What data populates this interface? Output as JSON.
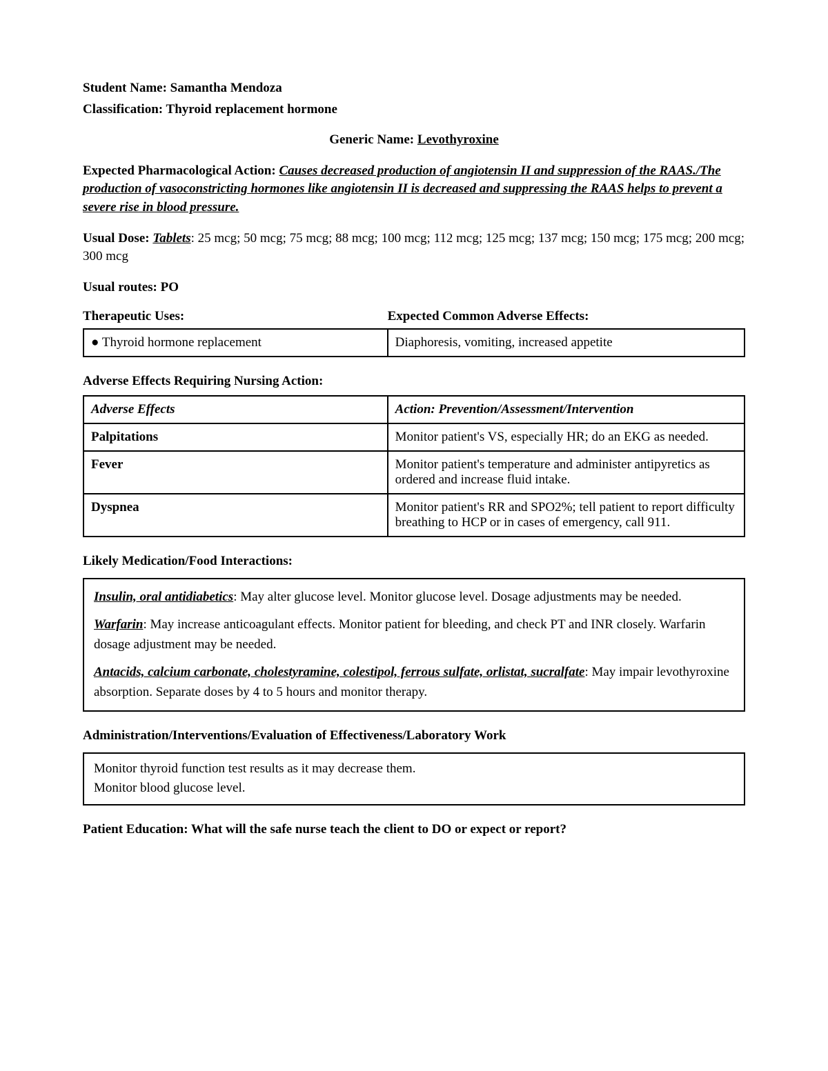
{
  "header": {
    "student_label": "Student Name:",
    "student_value": " Samantha Mendoza",
    "classification_label": "Classification:",
    "classification_value": " Thyroid replacement hormone",
    "generic_label": "Generic Name: ",
    "generic_value": "Levothyroxine"
  },
  "pharm_action": {
    "label": "Expected Pharmacological Action: ",
    "text": "Causes decreased production of angiotensin II and suppression of the RAAS./The production of vasoconstricting hormones like angiotensin II is decreased and suppressing the RAAS helps to prevent a severe rise in blood pressure."
  },
  "dose": {
    "label": "Usual Dose: ",
    "form": "Tablets",
    "text": ": 25 mcg; 50 mcg; 75 mcg; 88 mcg; 100 mcg; 112 mcg; 125 mcg; 137 mcg; 150 mcg; 175 mcg; 200 mcg; 300 mcg"
  },
  "routes": {
    "label": "Usual routes: ",
    "value": "PO"
  },
  "uses_effects": {
    "uses_heading": "Therapeutic Uses:",
    "effects_heading": "Expected Common Adverse Effects:",
    "uses_cell": "● Thyroid hormone replacement",
    "effects_cell": "Diaphoresis, vomiting, increased appetite"
  },
  "adverse": {
    "heading": "Adverse Effects Requiring Nursing Action:",
    "col1": "Adverse Effects",
    "col2": "Action: Prevention/Assessment/Intervention",
    "rows": [
      {
        "effect": "Palpitations",
        "action": "Monitor patient's VS, especially HR; do an EKG as needed."
      },
      {
        "effect": "Fever",
        "action": "Monitor patient's temperature and administer antipyretics as ordered and increase fluid intake."
      },
      {
        "effect": "Dyspnea",
        "action": "Monitor patient's RR and SPO2%; tell patient to report difficulty breathing to HCP or in cases of emergency, call 911."
      }
    ]
  },
  "interactions": {
    "heading": "Likely Medication/Food Interactions:",
    "items": [
      {
        "label": "Insulin, oral antidiabetics",
        "text": ": May alter glucose level. Monitor glucose level. Dosage adjustments may be needed."
      },
      {
        "label": "Warfarin",
        "text": ": May increase anticoagulant effects. Monitor patient for bleeding, and check PT and INR closely. Warfarin dosage adjustment may be needed."
      },
      {
        "label": "Antacids, calcium carbonate, cholestyramine, colestipol, ferrous sulfate, orlistat, sucralfate",
        "text": ": May impair levothyroxine absorption. Separate doses by 4 to 5 hours and monitor therapy."
      }
    ]
  },
  "admin": {
    "heading": "Administration/Interventions/Evaluation of Effectiveness/Laboratory Work",
    "lines": [
      "Monitor thyroid function test results as it may decrease them.",
      "Monitor blood glucose level."
    ]
  },
  "education": {
    "heading": "Patient Education: What will the safe nurse teach the client to DO or expect or report?"
  },
  "style": {
    "font_size_body": 19,
    "border_color": "#000000",
    "background_color": "#ffffff",
    "text_color": "#000000"
  }
}
